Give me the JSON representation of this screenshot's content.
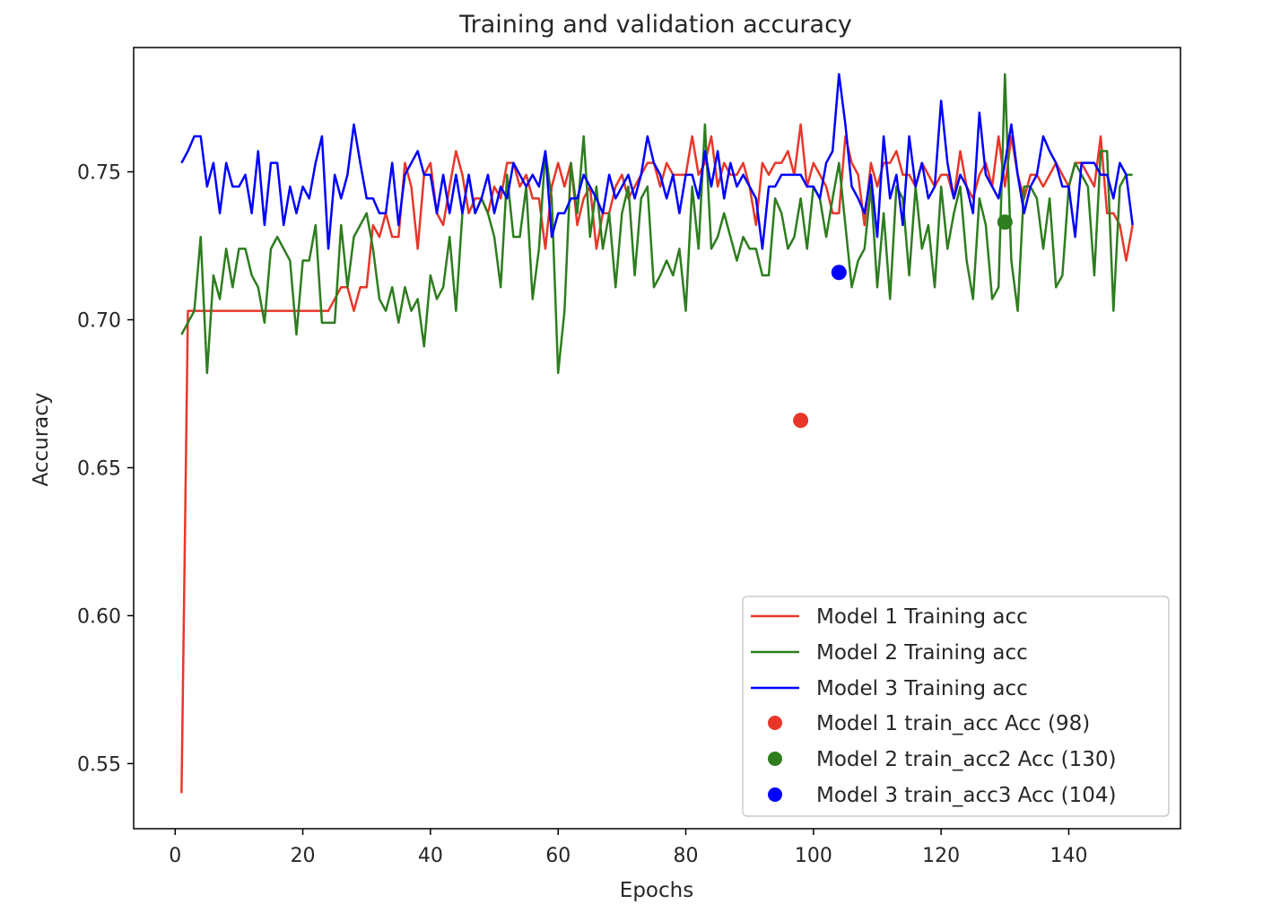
{
  "chart_data": {
    "type": "line",
    "title": "Training and validation accuracy",
    "xlabel": "Epochs",
    "ylabel": "Accuracy",
    "xlim": [
      -6.5,
      157.5
    ],
    "ylim": [
      0.528,
      0.792
    ],
    "xticks": [
      0,
      20,
      40,
      60,
      80,
      100,
      120,
      140
    ],
    "yticks": [
      0.55,
      0.6,
      0.65,
      0.7,
      0.75
    ],
    "ytick_labels": [
      "0.55",
      "0.60",
      "0.65",
      "0.70",
      "0.75"
    ],
    "grid": false,
    "legend_position": "lower-right",
    "x": [
      1,
      2,
      3,
      4,
      5,
      6,
      7,
      8,
      9,
      10,
      11,
      12,
      13,
      14,
      15,
      16,
      17,
      18,
      19,
      20,
      21,
      22,
      23,
      24,
      25,
      26,
      27,
      28,
      29,
      30,
      31,
      32,
      33,
      34,
      35,
      36,
      37,
      38,
      39,
      40,
      41,
      42,
      43,
      44,
      45,
      46,
      47,
      48,
      49,
      50,
      51,
      52,
      53,
      54,
      55,
      56,
      57,
      58,
      59,
      60,
      61,
      62,
      63,
      64,
      65,
      66,
      67,
      68,
      69,
      70,
      71,
      72,
      73,
      74,
      75,
      76,
      77,
      78,
      79,
      80,
      81,
      82,
      83,
      84,
      85,
      86,
      87,
      88,
      89,
      90,
      91,
      92,
      93,
      94,
      95,
      96,
      97,
      98,
      99,
      100,
      101,
      102,
      103,
      104,
      105,
      106,
      107,
      108,
      109,
      110,
      111,
      112,
      113,
      114,
      115,
      116,
      117,
      118,
      119,
      120,
      121,
      122,
      123,
      124,
      125,
      126,
      127,
      128,
      129,
      130,
      131,
      132,
      133,
      134,
      135,
      136,
      137,
      138,
      139,
      140,
      141,
      142,
      143,
      144,
      145,
      146,
      147,
      148,
      149,
      150
    ],
    "series": [
      {
        "name": "Model 1 Training acc",
        "color": "#e8372a",
        "values": [
          0.54,
          0.703,
          0.703,
          0.703,
          0.703,
          0.703,
          0.703,
          0.703,
          0.703,
          0.703,
          0.703,
          0.703,
          0.703,
          0.703,
          0.703,
          0.703,
          0.703,
          0.703,
          0.703,
          0.703,
          0.703,
          0.703,
          0.703,
          0.703,
          0.707,
          0.711,
          0.711,
          0.703,
          0.711,
          0.711,
          0.732,
          0.728,
          0.736,
          0.728,
          0.728,
          0.753,
          0.745,
          0.724,
          0.749,
          0.753,
          0.736,
          0.732,
          0.745,
          0.757,
          0.749,
          0.736,
          0.741,
          0.741,
          0.736,
          0.745,
          0.741,
          0.753,
          0.753,
          0.745,
          0.749,
          0.741,
          0.741,
          0.724,
          0.745,
          0.753,
          0.745,
          0.753,
          0.732,
          0.741,
          0.745,
          0.724,
          0.736,
          0.736,
          0.745,
          0.749,
          0.741,
          0.745,
          0.749,
          0.753,
          0.753,
          0.745,
          0.753,
          0.749,
          0.749,
          0.749,
          0.762,
          0.749,
          0.753,
          0.762,
          0.745,
          0.753,
          0.749,
          0.749,
          0.753,
          0.745,
          0.732,
          0.753,
          0.749,
          0.753,
          0.753,
          0.757,
          0.749,
          0.766,
          0.745,
          0.753,
          0.749,
          0.745,
          0.736,
          0.736,
          0.762,
          0.753,
          0.749,
          0.732,
          0.753,
          0.745,
          0.753,
          0.753,
          0.757,
          0.749,
          0.749,
          0.745,
          0.753,
          0.749,
          0.745,
          0.749,
          0.749,
          0.741,
          0.757,
          0.745,
          0.741,
          0.749,
          0.753,
          0.745,
          0.762,
          0.745,
          0.762,
          0.749,
          0.741,
          0.749,
          0.749,
          0.745,
          0.749,
          0.753,
          0.749,
          0.745,
          0.753,
          0.753,
          0.749,
          0.745,
          0.762,
          0.736,
          0.736,
          0.732,
          0.72,
          0.732
        ]
      },
      {
        "name": "Model 2 Training acc",
        "color": "#2e7d1f",
        "values": [
          0.695,
          0.699,
          0.703,
          0.728,
          0.682,
          0.715,
          0.707,
          0.724,
          0.711,
          0.724,
          0.724,
          0.715,
          0.711,
          0.699,
          0.724,
          0.728,
          0.724,
          0.72,
          0.695,
          0.72,
          0.72,
          0.732,
          0.699,
          0.699,
          0.699,
          0.732,
          0.711,
          0.728,
          0.732,
          0.736,
          0.724,
          0.707,
          0.703,
          0.711,
          0.699,
          0.711,
          0.703,
          0.707,
          0.691,
          0.715,
          0.707,
          0.711,
          0.728,
          0.703,
          0.736,
          0.749,
          0.736,
          0.741,
          0.736,
          0.728,
          0.711,
          0.749,
          0.728,
          0.728,
          0.745,
          0.707,
          0.724,
          0.757,
          0.741,
          0.682,
          0.703,
          0.753,
          0.736,
          0.762,
          0.728,
          0.745,
          0.724,
          0.736,
          0.711,
          0.736,
          0.745,
          0.715,
          0.741,
          0.745,
          0.711,
          0.715,
          0.72,
          0.715,
          0.724,
          0.703,
          0.745,
          0.724,
          0.766,
          0.724,
          0.728,
          0.736,
          0.728,
          0.72,
          0.728,
          0.724,
          0.724,
          0.715,
          0.715,
          0.741,
          0.736,
          0.724,
          0.728,
          0.741,
          0.724,
          0.745,
          0.741,
          0.728,
          0.741,
          0.753,
          0.732,
          0.711,
          0.72,
          0.724,
          0.745,
          0.711,
          0.736,
          0.707,
          0.745,
          0.741,
          0.715,
          0.745,
          0.724,
          0.732,
          0.711,
          0.745,
          0.724,
          0.736,
          0.745,
          0.72,
          0.707,
          0.741,
          0.732,
          0.707,
          0.711,
          0.783,
          0.72,
          0.703,
          0.745,
          0.745,
          0.741,
          0.724,
          0.741,
          0.711,
          0.715,
          0.745,
          0.753,
          0.749,
          0.745,
          0.715,
          0.757,
          0.757,
          0.703,
          0.745,
          0.749,
          0.749
        ]
      },
      {
        "name": "Model 3 Training acc",
        "color": "#0000ff",
        "values": [
          0.753,
          0.757,
          0.762,
          0.762,
          0.745,
          0.753,
          0.736,
          0.753,
          0.745,
          0.745,
          0.749,
          0.736,
          0.757,
          0.732,
          0.753,
          0.753,
          0.732,
          0.745,
          0.736,
          0.745,
          0.741,
          0.753,
          0.762,
          0.724,
          0.749,
          0.741,
          0.749,
          0.766,
          0.753,
          0.741,
          0.741,
          0.736,
          0.736,
          0.753,
          0.732,
          0.749,
          0.753,
          0.757,
          0.749,
          0.749,
          0.736,
          0.749,
          0.736,
          0.749,
          0.736,
          0.749,
          0.736,
          0.741,
          0.749,
          0.736,
          0.745,
          0.741,
          0.753,
          0.749,
          0.745,
          0.749,
          0.745,
          0.757,
          0.728,
          0.736,
          0.736,
          0.741,
          0.741,
          0.749,
          0.745,
          0.741,
          0.736,
          0.749,
          0.741,
          0.745,
          0.749,
          0.741,
          0.749,
          0.762,
          0.753,
          0.749,
          0.741,
          0.749,
          0.736,
          0.749,
          0.749,
          0.741,
          0.757,
          0.745,
          0.757,
          0.741,
          0.753,
          0.745,
          0.749,
          0.745,
          0.741,
          0.724,
          0.745,
          0.745,
          0.749,
          0.749,
          0.749,
          0.749,
          0.745,
          0.745,
          0.741,
          0.753,
          0.757,
          0.783,
          0.766,
          0.745,
          0.741,
          0.736,
          0.749,
          0.728,
          0.762,
          0.741,
          0.749,
          0.732,
          0.762,
          0.745,
          0.753,
          0.741,
          0.745,
          0.774,
          0.753,
          0.741,
          0.749,
          0.745,
          0.736,
          0.77,
          0.749,
          0.745,
          0.741,
          0.753,
          0.766,
          0.749,
          0.736,
          0.745,
          0.749,
          0.762,
          0.757,
          0.753,
          0.745,
          0.745,
          0.728,
          0.753,
          0.753,
          0.753,
          0.749,
          0.749,
          0.741,
          0.753,
          0.749,
          0.732
        ]
      }
    ],
    "points": [
      {
        "name": "Model 1 train_acc Acc (98)",
        "color": "#e8372a",
        "x": 98,
        "y": 0.666
      },
      {
        "name": "Model 2 train_acc2 Acc (130)",
        "color": "#2e7d1f",
        "x": 130,
        "y": 0.733
      },
      {
        "name": "Model 3 train_acc3 Acc (104)",
        "color": "#0000ff",
        "x": 104,
        "y": 0.716
      }
    ]
  }
}
